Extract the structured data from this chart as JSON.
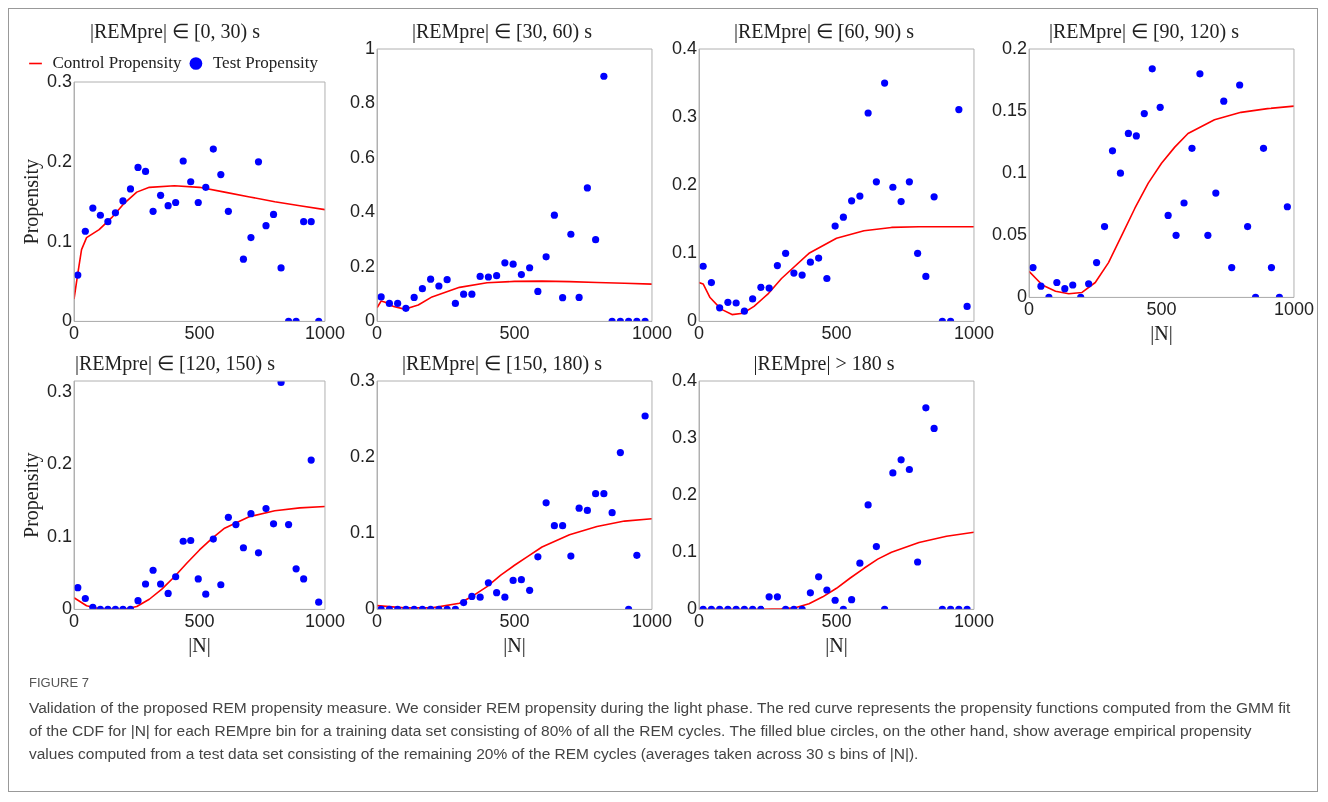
{
  "chart_data": [
    {
      "type": "scatter",
      "title": "|REMpre| ∈ [0, 30) s",
      "ylabel": "Propensity",
      "xlim": [
        0,
        1000
      ],
      "xticks": [
        0,
        500,
        1000
      ],
      "ylim": [
        0,
        0.3
      ],
      "yticks": [
        0,
        0.1,
        0.2,
        0.3
      ],
      "legend": "top left",
      "series": [
        {
          "name": "Control Propensity",
          "type": "line",
          "marker": "none",
          "color": "#ff0000",
          "x": [
            0,
            15,
            30,
            50,
            100,
            150,
            200,
            250,
            300,
            400,
            500,
            600,
            700,
            800,
            900,
            1000
          ],
          "values": [
            0.028,
            0.06,
            0.09,
            0.105,
            0.115,
            0.13,
            0.148,
            0.162,
            0.168,
            0.17,
            0.168,
            0.162,
            0.156,
            0.15,
            0.145,
            0.14
          ]
        },
        {
          "name": "Test Propensity",
          "type": "scatter",
          "marker": "circle",
          "color": "#0000ff",
          "x": [
            15,
            45,
            75,
            105,
            135,
            165,
            195,
            225,
            255,
            285,
            315,
            345,
            375,
            405,
            435,
            465,
            495,
            525,
            555,
            585,
            615,
            645,
            675,
            705,
            735,
            765,
            795,
            825,
            855,
            885,
            915,
            945,
            975
          ],
          "values": [
            0.058,
            0.113,
            0.142,
            0.133,
            0.125,
            0.136,
            0.151,
            0.166,
            0.193,
            0.188,
            0.138,
            0.158,
            0.145,
            0.149,
            0.201,
            0.175,
            0.149,
            0.168,
            0.216,
            0.184,
            0.138,
            null,
            0.078,
            0.105,
            0.2,
            0.12,
            0.134,
            0.067,
            0,
            0,
            0.125,
            0.125,
            0
          ]
        }
      ]
    },
    {
      "type": "scatter",
      "title": "|REMpre| ∈ [30, 60) s",
      "xlim": [
        0,
        1000
      ],
      "xticks": [
        0,
        500,
        1000
      ],
      "ylim": [
        0,
        1
      ],
      "yticks": [
        0,
        0.2,
        0.4,
        0.6,
        0.8,
        1
      ],
      "series": [
        {
          "type": "line",
          "marker": "none",
          "color": "#ff0000",
          "x": [
            0,
            15,
            30,
            60,
            100,
            150,
            200,
            300,
            400,
            500,
            600,
            700,
            800,
            900,
            1000
          ],
          "values": [
            0.05,
            0.075,
            0.07,
            0.055,
            0.045,
            0.06,
            0.09,
            0.125,
            0.142,
            0.147,
            0.148,
            0.146,
            0.143,
            0.14,
            0.137
          ]
        },
        {
          "type": "scatter",
          "marker": "circle",
          "color": "#0000ff",
          "x": [
            15,
            45,
            75,
            105,
            135,
            165,
            195,
            225,
            255,
            285,
            315,
            345,
            375,
            405,
            435,
            465,
            495,
            525,
            555,
            585,
            615,
            645,
            675,
            705,
            735,
            765,
            795,
            825,
            855,
            885,
            915,
            945,
            975
          ],
          "values": [
            0.09,
            0.066,
            0.066,
            0.048,
            0.088,
            0.12,
            0.155,
            0.13,
            0.153,
            0.066,
            0.1,
            0.1,
            0.165,
            0.163,
            0.168,
            0.215,
            0.21,
            0.172,
            0.197,
            0.11,
            0.237,
            0.39,
            0.087,
            0.32,
            0.088,
            0.49,
            0.3,
            0.9,
            0,
            0,
            0,
            0,
            0
          ]
        }
      ]
    },
    {
      "type": "scatter",
      "title": "|REMpre| ∈ [60, 90) s",
      "xlim": [
        0,
        1000
      ],
      "xticks": [
        0,
        500,
        1000
      ],
      "ylim": [
        0,
        0.4
      ],
      "yticks": [
        0,
        0.1,
        0.2,
        0.3,
        0.4
      ],
      "series": [
        {
          "type": "line",
          "marker": "none",
          "color": "#ff0000",
          "x": [
            0,
            15,
            40,
            80,
            120,
            160,
            200,
            250,
            300,
            400,
            500,
            600,
            700,
            800,
            1000
          ],
          "values": [
            0.057,
            0.055,
            0.035,
            0.018,
            0.01,
            0.012,
            0.022,
            0.04,
            0.063,
            0.1,
            0.122,
            0.133,
            0.138,
            0.139,
            0.139
          ]
        },
        {
          "type": "scatter",
          "marker": "circle",
          "color": "#0000ff",
          "x": [
            15,
            45,
            75,
            105,
            135,
            165,
            195,
            225,
            255,
            285,
            315,
            345,
            375,
            405,
            435,
            465,
            495,
            525,
            555,
            585,
            615,
            645,
            675,
            705,
            735,
            765,
            795,
            825,
            855,
            885,
            915,
            945,
            975
          ],
          "values": [
            0.081,
            0.057,
            0.02,
            0.028,
            0.027,
            0.015,
            0.033,
            0.05,
            0.049,
            0.082,
            0.1,
            0.071,
            0.068,
            0.087,
            0.093,
            0.063,
            0.14,
            0.153,
            0.177,
            0.184,
            0.306,
            0.205,
            0.35,
            0.197,
            0.176,
            0.205,
            0.1,
            0.066,
            0.183,
            0,
            0,
            0.311,
            0.022
          ]
        }
      ]
    },
    {
      "type": "scatter",
      "title": "|REMpre| ∈ [90, 120) s",
      "xlabel": "|N|",
      "xlim": [
        0,
        1000
      ],
      "xticks": [
        0,
        500,
        1000
      ],
      "ylim": [
        0,
        0.2
      ],
      "yticks": [
        0,
        0.05,
        0.1,
        0.15,
        0.2
      ],
      "series": [
        {
          "type": "line",
          "marker": "none",
          "color": "#ff0000",
          "x": [
            0,
            50,
            100,
            150,
            200,
            250,
            300,
            350,
            400,
            450,
            500,
            550,
            600,
            700,
            800,
            900,
            1000
          ],
          "values": [
            0.021,
            0.01,
            0.005,
            0.003,
            0.004,
            0.012,
            0.028,
            0.05,
            0.072,
            0.092,
            0.108,
            0.121,
            0.132,
            0.143,
            0.149,
            0.152,
            0.154
          ]
        },
        {
          "type": "scatter",
          "marker": "circle",
          "color": "#0000ff",
          "x": [
            15,
            45,
            75,
            105,
            135,
            165,
            195,
            225,
            255,
            285,
            315,
            345,
            375,
            405,
            435,
            465,
            495,
            525,
            555,
            585,
            615,
            645,
            675,
            705,
            735,
            765,
            795,
            825,
            855,
            885,
            915,
            945,
            975
          ],
          "values": [
            0.024,
            0.009,
            0,
            0.012,
            0.007,
            0.01,
            0,
            0.011,
            0.028,
            0.057,
            0.118,
            0.1,
            0.132,
            0.13,
            0.148,
            0.184,
            0.153,
            0.066,
            0.05,
            0.076,
            0.12,
            0.18,
            0.05,
            0.084,
            0.158,
            0.024,
            0.171,
            0.057,
            0,
            0.12,
            0.024,
            0,
            0.073
          ]
        }
      ]
    },
    {
      "type": "scatter",
      "title": "|REMpre| ∈ [120, 150) s",
      "xlabel": "|N|",
      "ylabel": "Propensity",
      "xlim": [
        0,
        1000
      ],
      "xticks": [
        0,
        500,
        1000
      ],
      "ylim": [
        0,
        0.315
      ],
      "yticks": [
        0,
        0.1,
        0.2,
        0.3
      ],
      "series": [
        {
          "type": "line",
          "marker": "none",
          "color": "#ff0000",
          "x": [
            0,
            50,
            100,
            200,
            250,
            300,
            350,
            400,
            450,
            500,
            550,
            600,
            700,
            800,
            900,
            1000
          ],
          "values": [
            0.016,
            0.005,
            0.001,
            0,
            0.004,
            0.014,
            0.028,
            0.045,
            0.064,
            0.082,
            0.098,
            0.112,
            0.128,
            0.136,
            0.14,
            0.142
          ]
        },
        {
          "type": "scatter",
          "marker": "circle",
          "color": "#0000ff",
          "x": [
            15,
            45,
            75,
            105,
            135,
            165,
            195,
            225,
            255,
            285,
            315,
            345,
            375,
            405,
            435,
            465,
            495,
            525,
            555,
            585,
            615,
            645,
            675,
            705,
            735,
            765,
            795,
            825,
            855,
            885,
            915,
            945,
            975
          ],
          "values": [
            0.03,
            0.015,
            0.003,
            0,
            0,
            0,
            0,
            0,
            0.012,
            0.035,
            0.054,
            0.035,
            0.022,
            0.045,
            0.094,
            0.095,
            0.042,
            0.021,
            0.097,
            0.034,
            0.127,
            0.117,
            0.085,
            0.132,
            0.078,
            0.139,
            0.118,
            0.313,
            0.117,
            0.056,
            0.042,
            0.206,
            0.01
          ]
        }
      ]
    },
    {
      "type": "scatter",
      "title": "|REMpre| ∈ [150, 180) s",
      "xlabel": "|N|",
      "xlim": [
        0,
        1000
      ],
      "xticks": [
        0,
        500,
        1000
      ],
      "ylim": [
        0,
        0.3
      ],
      "yticks": [
        0,
        0.1,
        0.2,
        0.3
      ],
      "series": [
        {
          "type": "line",
          "marker": "none",
          "color": "#ff0000",
          "x": [
            0,
            100,
            200,
            300,
            350,
            400,
            450,
            500,
            550,
            600,
            700,
            800,
            900,
            1000
          ],
          "values": [
            0.005,
            0.002,
            0.002,
            0.008,
            0.018,
            0.03,
            0.045,
            0.058,
            0.07,
            0.082,
            0.098,
            0.109,
            0.116,
            0.119
          ]
        },
        {
          "type": "scatter",
          "marker": "circle",
          "color": "#0000ff",
          "x": [
            15,
            45,
            75,
            105,
            135,
            165,
            195,
            225,
            255,
            285,
            315,
            345,
            375,
            405,
            435,
            465,
            495,
            525,
            555,
            585,
            615,
            645,
            675,
            705,
            735,
            765,
            795,
            825,
            855,
            885,
            915,
            945,
            975
          ],
          "values": [
            0,
            0,
            0,
            0,
            0,
            0,
            0,
            0,
            0,
            0,
            0.009,
            0.017,
            0.016,
            0.035,
            0.022,
            0.016,
            0.038,
            0.039,
            0.025,
            0.069,
            0.14,
            0.11,
            0.11,
            0.07,
            0.133,
            0.13,
            0.152,
            0.152,
            0.127,
            0.206,
            0,
            0.071,
            0.254
          ]
        }
      ]
    },
    {
      "type": "scatter",
      "title": "|REMpre| > 180 s",
      "xlabel": "|N|",
      "xlim": [
        0,
        1000
      ],
      "xticks": [
        0,
        500,
        1000
      ],
      "ylim": [
        0,
        0.4
      ],
      "yticks": [
        0,
        0.1,
        0.2,
        0.3,
        0.4
      ],
      "annotations": [
        "FIGURE 7",
        "Validation of the proposed REM propensity measure. We consider REM propensity during the light phase. The red curve represents the propensity functions computed from the GMM fit of the CDF for |N| for each REMpre bin for a training data set consisting of 80% of all the REM cycles. The filled blue circles, on the other hand, show average empirical propensity values computed from a test data set consisting of the remaining 20% of the REM cycles (averages taken across 30 s bins of |N|)."
      ],
      "series": [
        {
          "type": "line",
          "marker": "none",
          "color": "#ff0000",
          "x": [
            0,
            200,
            300,
            350,
            400,
            450,
            500,
            550,
            600,
            650,
            700,
            800,
            900,
            1000
          ],
          "values": [
            0,
            0,
            0.001,
            0.003,
            0.01,
            0.022,
            0.037,
            0.055,
            0.072,
            0.088,
            0.1,
            0.117,
            0.128,
            0.135
          ]
        },
        {
          "type": "scatter",
          "marker": "circle",
          "color": "#0000ff",
          "x": [
            15,
            45,
            75,
            105,
            135,
            165,
            195,
            225,
            255,
            285,
            315,
            345,
            375,
            405,
            435,
            465,
            495,
            525,
            555,
            585,
            615,
            645,
            675,
            705,
            735,
            765,
            795,
            825,
            855,
            885,
            915,
            945,
            975
          ],
          "values": [
            0,
            0,
            0,
            0,
            0,
            0,
            0,
            0,
            0.022,
            0.022,
            0,
            0,
            0,
            0.029,
            0.057,
            0.034,
            0.016,
            0,
            0.017,
            0.081,
            0.183,
            0.11,
            0,
            0.239,
            0.262,
            0.245,
            0.083,
            0.353,
            0.317,
            0,
            0,
            0,
            0
          ]
        }
      ]
    }
  ]
}
